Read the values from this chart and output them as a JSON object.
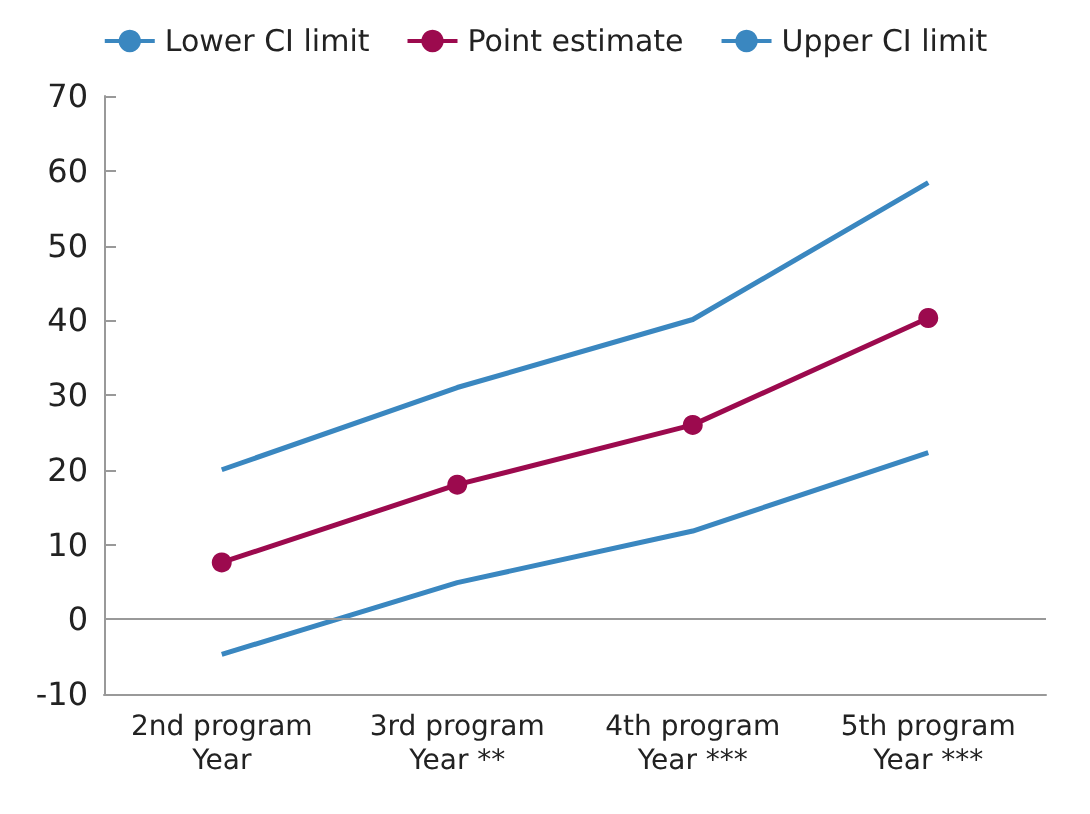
{
  "chart_data": {
    "type": "line",
    "categories": [
      "2nd program\nYear",
      "3rd program\nYear **",
      "4th program\nYear ***",
      "5th program\nYear ***"
    ],
    "series": [
      {
        "name": "Lower CI limit",
        "color": "#3a87c0",
        "marker": "none",
        "values": [
          -4.7,
          4.9,
          11.8,
          22.3
        ]
      },
      {
        "name": "Point estimate",
        "color": "#9c0a4e",
        "marker": "circle",
        "values": [
          7.6,
          18,
          26,
          40.3
        ]
      },
      {
        "name": "Upper CI limit",
        "color": "#3a87c0",
        "marker": "none",
        "values": [
          20,
          31,
          40.1,
          58.4
        ]
      }
    ],
    "ylim": [
      -10,
      70
    ],
    "yticks": [
      -10,
      0,
      10,
      20,
      30,
      40,
      50,
      60,
      70
    ],
    "grid": false,
    "legend": "top",
    "line_style": "solid",
    "ref_lines": [
      {
        "axis": "y",
        "value": 0,
        "color": "#999999"
      }
    ]
  }
}
